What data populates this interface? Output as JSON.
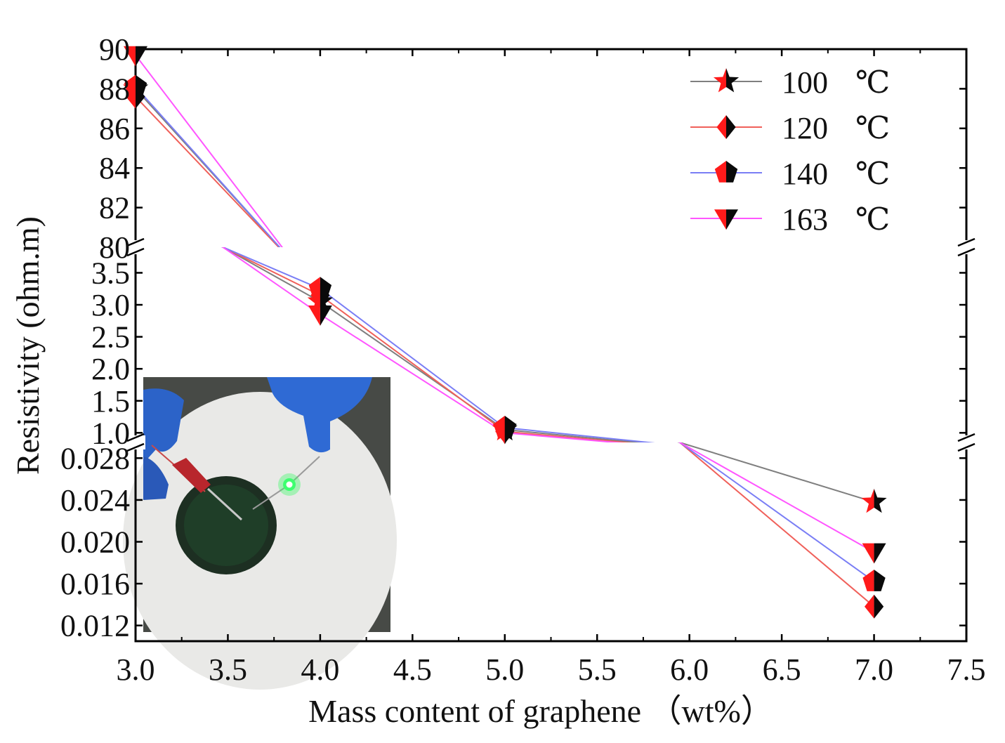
{
  "chart_data": {
    "type": "line",
    "xlabel": "Mass content of graphene （wt%）",
    "ylabel": "Resistivity (ohm.m)",
    "xlim": [
      3.0,
      7.5
    ],
    "x_ticks": [
      3.0,
      3.5,
      4.0,
      4.5,
      5.0,
      5.5,
      6.0,
      6.5,
      7.0,
      7.5
    ],
    "x_tick_labels": [
      "3.0",
      "3.5",
      "4.0",
      "4.5",
      "5.0",
      "5.5",
      "6.0",
      "6.5",
      "7.0",
      "7.5"
    ],
    "y_segments": [
      {
        "name": "upper",
        "ylim": [
          80,
          90
        ],
        "ticks": [
          80,
          82,
          84,
          86,
          88,
          90
        ],
        "tick_labels": [
          "80",
          "82",
          "84",
          "86",
          "88",
          "90"
        ]
      },
      {
        "name": "middle",
        "ylim": [
          0.85,
          3.9
        ],
        "ticks": [
          1.0,
          1.5,
          2.0,
          2.5,
          3.0,
          3.5
        ],
        "tick_labels": [
          "1.0",
          "1.5",
          "2.0",
          "2.5",
          "3.0",
          "3.5"
        ]
      },
      {
        "name": "lower",
        "ylim": [
          0.0105,
          0.0295
        ],
        "ticks": [
          0.012,
          0.016,
          0.02,
          0.024,
          0.028
        ],
        "tick_labels": [
          "0.012",
          "0.016",
          "0.020",
          "0.024",
          "0.028"
        ]
      }
    ],
    "x": [
      3.0,
      4.0,
      5.0,
      7.0
    ],
    "series": [
      {
        "name": "100 ℃",
        "label_value": "100",
        "label_unit": "℃",
        "marker": "star",
        "line_color": "#7f7f7f",
        "values": [
          88.0,
          3.05,
          1.05,
          0.0238
        ]
      },
      {
        "name": "120 ℃",
        "label_value": "120",
        "label_unit": "℃",
        "marker": "diamond",
        "line_color": "#f0605a",
        "values": [
          87.6,
          3.15,
          1.02,
          0.0138
        ]
      },
      {
        "name": "140 ℃",
        "label_value": "140",
        "label_unit": "℃",
        "marker": "pentagon",
        "line_color": "#7a7ef5",
        "values": [
          88.1,
          3.25,
          1.08,
          0.0162
        ]
      },
      {
        "name": "163 ℃",
        "label_value": "163",
        "label_unit": "℃",
        "marker": "triangle-down",
        "line_color": "#ff55ff",
        "values": [
          89.7,
          2.85,
          1.0,
          0.019
        ]
      }
    ],
    "marker_colors": {
      "left": "#ff1a1a",
      "right": "#0a0a0a"
    },
    "legend_position": "top-right",
    "inset": "photo of a white ceramic ring with a green LED lit, held by blue-gloved hands with a red multimeter probe",
    "inset_position": "bottom-left"
  }
}
